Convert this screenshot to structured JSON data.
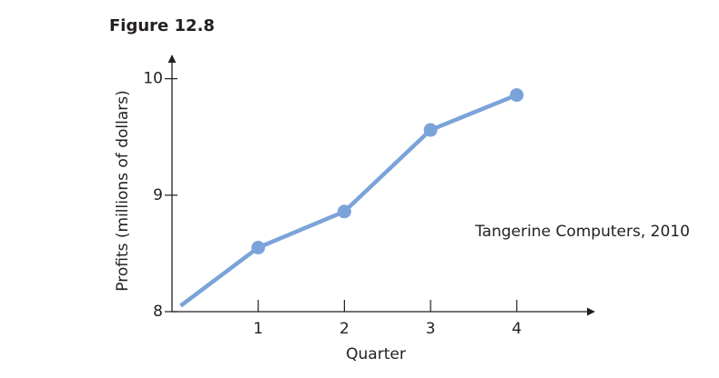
{
  "chart_data": {
    "type": "line",
    "title": "Figure 12.8",
    "x_label": "Quarter",
    "y_label": "Profits (millions of dollars)",
    "annotation": "Tangerine Computers, 2010",
    "x": [
      0.1,
      1,
      2,
      3,
      4
    ],
    "series": [
      {
        "color": "#7aa3d9",
        "values": [
          8.05,
          8.55,
          8.86,
          9.56,
          9.86
        ],
        "markers": [
          false,
          true,
          true,
          true,
          true
        ]
      }
    ],
    "xlim": [
      0,
      4.9
    ],
    "xticks": [
      1,
      2,
      3,
      4
    ],
    "ylim": [
      8,
      10.2
    ],
    "yticks": [
      8,
      9,
      10
    ]
  }
}
